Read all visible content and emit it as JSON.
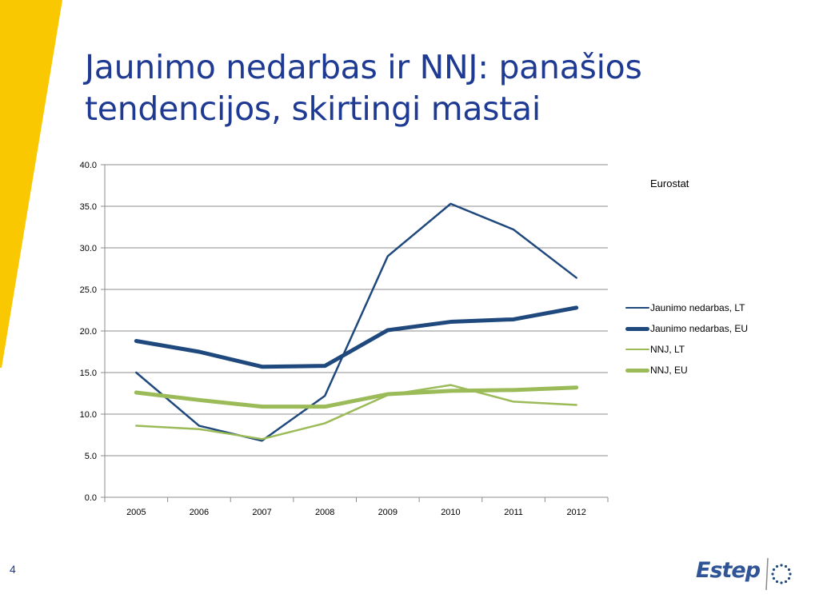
{
  "slide": {
    "title_line1": "Jaunimo nedarbas ir NNJ: panašios",
    "title_line2": "tendencijos, skirtingi mastai",
    "page_number": "4",
    "source_note": "Eurostat",
    "logo_text": "Estep"
  },
  "colors": {
    "title": "#1f3a93",
    "band": "#f9c800",
    "dark_blue": "#1f497d",
    "green": "#9bbb59"
  },
  "chart_data": {
    "type": "line",
    "categories": [
      "2005",
      "2006",
      "2007",
      "2008",
      "2009",
      "2010",
      "2011",
      "2012"
    ],
    "ylim": [
      0,
      40
    ],
    "yticks": [
      "0.0",
      "5.0",
      "10.0",
      "15.0",
      "20.0",
      "25.0",
      "30.0",
      "35.0",
      "40.0"
    ],
    "grid": true,
    "legend_position": "right",
    "series": [
      {
        "name": "Jaunimo nedarbas, LT",
        "color": "#1f497d",
        "weight": "thin",
        "values": [
          15.0,
          8.6,
          6.8,
          12.2,
          29.0,
          35.3,
          32.2,
          26.4
        ]
      },
      {
        "name": "Jaunimo nedarbas, EU",
        "color": "#1f497d",
        "weight": "thick",
        "values": [
          18.8,
          17.5,
          15.7,
          15.8,
          20.1,
          21.1,
          21.4,
          22.8
        ]
      },
      {
        "name": "NNJ, LT",
        "color": "#9bbb59",
        "weight": "thin",
        "values": [
          8.6,
          8.2,
          7.0,
          8.9,
          12.3,
          13.5,
          11.5,
          11.1
        ]
      },
      {
        "name": "NNJ, EU",
        "color": "#9bbb59",
        "weight": "thick",
        "values": [
          12.6,
          11.7,
          10.9,
          10.9,
          12.4,
          12.8,
          12.9,
          13.2
        ]
      }
    ]
  }
}
